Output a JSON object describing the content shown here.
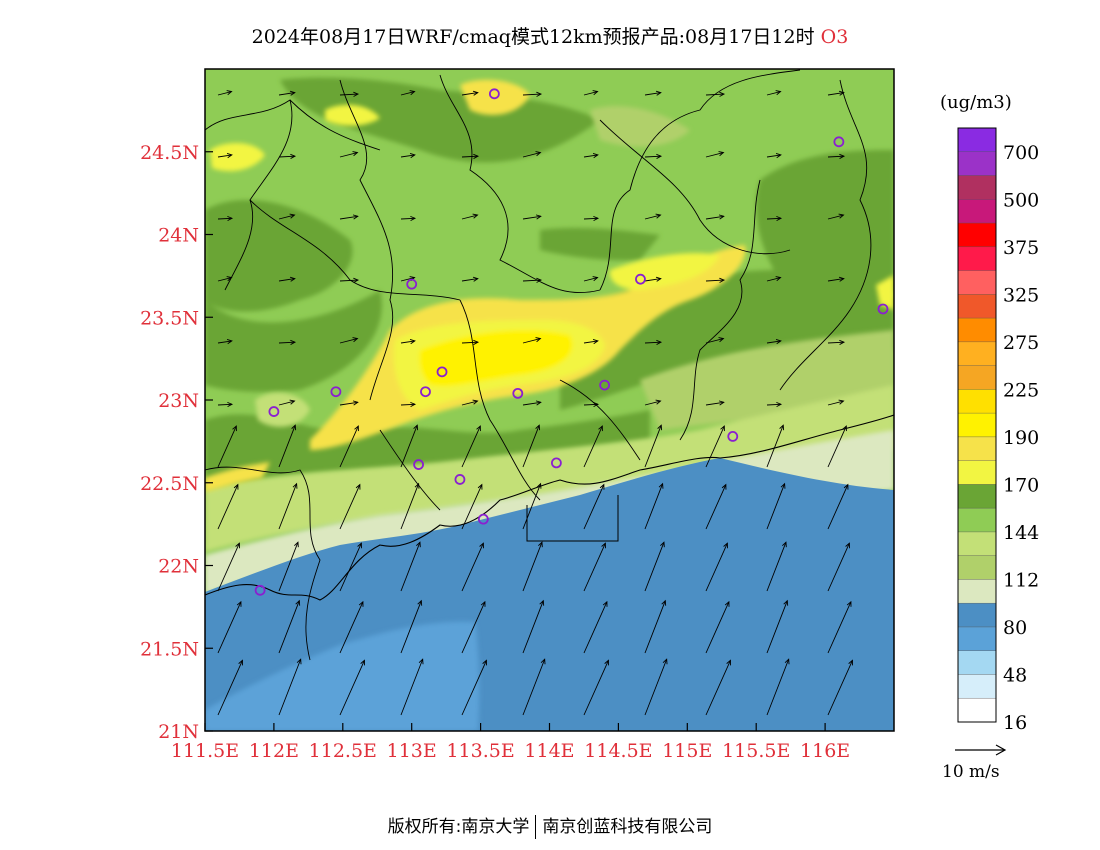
{
  "title_main": "2024年08月17日WRF/cmaq模式12km预报产品:08月17日12时",
  "title_species": "O3",
  "unit_label": "(ug/m3)",
  "wind_scale_label": "10 m/s",
  "footer": {
    "left": "版权所有:南京大学",
    "right": "南京创蓝科技有限公司"
  },
  "colors": {
    "axis_label": "#e0303a",
    "station_marker": "#8a1fd0",
    "sea": "#4c8fc4",
    "land": "#8fcc55"
  },
  "axes": {
    "lon_ticks": [
      "111.5E",
      "112E",
      "112.5E",
      "113E",
      "113.5E",
      "114E",
      "114.5E",
      "115E",
      "115.5E",
      "116E"
    ],
    "lon_values": [
      111.5,
      112,
      112.5,
      113,
      113.5,
      114,
      114.5,
      115,
      115.5,
      116
    ],
    "lat_ticks": [
      "24.5N",
      "24N",
      "23.5N",
      "23N",
      "22.5N",
      "22N",
      "21.5N",
      "21N"
    ],
    "lat_values": [
      24.5,
      24,
      23.5,
      23,
      22.5,
      22,
      21.5,
      21
    ],
    "lon_range": [
      111.5,
      116.5
    ],
    "lat_range": [
      21,
      25
    ]
  },
  "legend": {
    "labels": [
      "700",
      "500",
      "375",
      "325",
      "275",
      "225",
      "190",
      "170",
      "144",
      "112",
      "80",
      "48",
      "16"
    ],
    "colors": [
      "#8a2be2",
      "#9b32c8",
      "#b03060",
      "#c8187a",
      "#ff0000",
      "#ff1a4a",
      "#ff6060",
      "#f0582a",
      "#ff8c00",
      "#ffb020",
      "#f5a623",
      "#ffe000",
      "#fff200",
      "#f6e24a",
      "#f2f542",
      "#6aa535",
      "#8fcc55",
      "#c3e077",
      "#b0d06a",
      "#dce8c0",
      "#4c8fc4",
      "#5ba2d8",
      "#a4d8f2",
      "#d6eefa",
      "#ffffff"
    ]
  },
  "stations": [
    {
      "lon": 113.6,
      "lat": 24.85
    },
    {
      "lon": 116.1,
      "lat": 24.56
    },
    {
      "lon": 113.0,
      "lat": 23.7
    },
    {
      "lon": 114.66,
      "lat": 23.73
    },
    {
      "lon": 116.42,
      "lat": 23.55
    },
    {
      "lon": 113.22,
      "lat": 23.17
    },
    {
      "lon": 112.45,
      "lat": 23.05
    },
    {
      "lon": 113.1,
      "lat": 23.05
    },
    {
      "lon": 113.77,
      "lat": 23.04
    },
    {
      "lon": 114.4,
      "lat": 23.09
    },
    {
      "lon": 112.0,
      "lat": 22.93
    },
    {
      "lon": 115.33,
      "lat": 22.78
    },
    {
      "lon": 113.05,
      "lat": 22.61
    },
    {
      "lon": 113.35,
      "lat": 22.52
    },
    {
      "lon": 114.05,
      "lat": 22.62
    },
    {
      "lon": 113.52,
      "lat": 22.28
    },
    {
      "lon": 111.9,
      "lat": 21.85
    }
  ]
}
